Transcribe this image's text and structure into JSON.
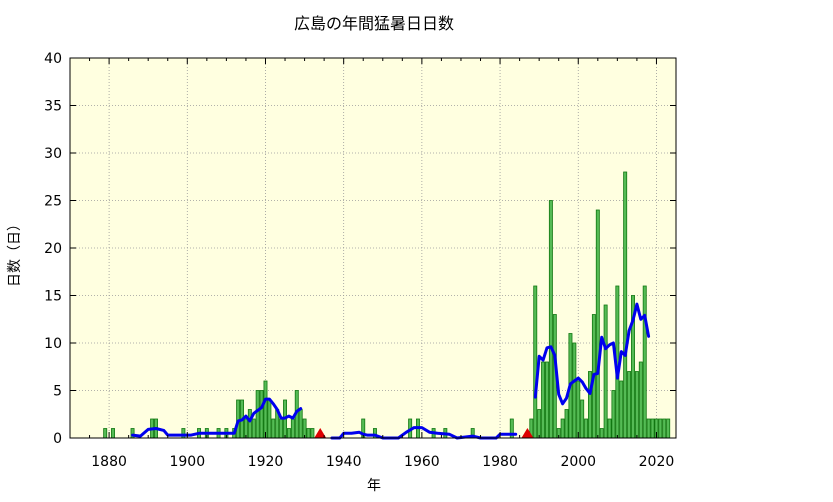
{
  "chart_data": {
    "type": "bar",
    "title": "広島の年間猛暑日日数",
    "xlabel": "年",
    "ylabel": "日数（日）",
    "xlim": [
      1870,
      2025
    ],
    "ylim": [
      0,
      40
    ],
    "xticks": [
      1880,
      1900,
      1920,
      1940,
      1960,
      1980,
      2000,
      2020
    ],
    "yticks": [
      0,
      5,
      10,
      15,
      20,
      25,
      30,
      35,
      40
    ],
    "grid": true,
    "colors": {
      "plot_bg": "#ffffe0",
      "bar_fill": "#55bb55",
      "bar_stroke": "#117711",
      "line": "#0000ee",
      "marker": "#dd0000"
    },
    "series": [
      {
        "kind": "bars",
        "x": [
          1879,
          1881,
          1886,
          1891,
          1892,
          1899,
          1903,
          1905,
          1908,
          1910,
          1912,
          1913,
          1914,
          1915,
          1916,
          1917,
          1918,
          1919,
          1920,
          1921,
          1922,
          1923,
          1924,
          1925,
          1926,
          1927,
          1928,
          1929,
          1930,
          1931,
          1932,
          1945,
          1948,
          1957,
          1959,
          1963,
          1966,
          1973,
          1983,
          1988,
          1989,
          1990,
          1991,
          1992,
          1993,
          1994,
          1995,
          1996,
          1997,
          1998,
          1999,
          2000,
          2001,
          2002,
          2003,
          2004,
          2005,
          2006,
          2007,
          2008,
          2009,
          2010,
          2011,
          2012,
          2013,
          2014,
          2015,
          2016,
          2017,
          2018,
          2019,
          2020,
          2021,
          2022,
          2023
        ],
        "values": [
          1,
          1,
          1,
          2,
          2,
          1,
          1,
          1,
          1,
          1,
          1,
          4,
          4,
          2,
          3,
          2,
          5,
          5,
          6,
          4,
          2,
          3,
          2,
          4,
          1,
          2,
          5,
          3,
          2,
          1,
          1,
          2,
          1,
          2,
          2,
          1,
          1,
          1,
          2,
          2,
          16,
          3,
          8,
          8,
          25,
          13,
          1,
          2,
          3,
          11,
          10,
          6,
          4,
          2,
          7,
          13,
          24,
          1,
          14,
          2,
          5,
          16,
          6,
          28,
          7,
          15,
          7,
          8,
          16,
          2,
          2,
          2,
          2,
          2,
          2
        ]
      },
      {
        "kind": "moving-average-line",
        "segments": [
          [
            [
              1886,
              0.3
            ],
            [
              1888,
              0.2
            ],
            [
              1890,
              0.9
            ],
            [
              1892,
              1.0
            ],
            [
              1894,
              0.8
            ],
            [
              1895,
              0.3
            ],
            [
              1899,
              0.3
            ],
            [
              1901,
              0.3
            ],
            [
              1903,
              0.5
            ],
            [
              1905,
              0.5
            ],
            [
              1908,
              0.5
            ],
            [
              1912,
              0.5
            ],
            [
              1913,
              1.8
            ],
            [
              1914,
              1.9
            ],
            [
              1915,
              2.3
            ],
            [
              1916,
              1.8
            ],
            [
              1917,
              2.6
            ],
            [
              1919,
              3.2
            ],
            [
              1920,
              4.1
            ],
            [
              1921,
              4.1
            ],
            [
              1922,
              3.6
            ],
            [
              1923,
              3.0
            ],
            [
              1924,
              2.1
            ],
            [
              1925,
              2.1
            ],
            [
              1926,
              2.3
            ],
            [
              1927,
              2.1
            ],
            [
              1928,
              2.8
            ],
            [
              1929,
              3.1
            ]
          ],
          [
            [
              1937,
              0.0
            ],
            [
              1939,
              0.0
            ],
            [
              1940,
              0.5
            ],
            [
              1942,
              0.5
            ],
            [
              1944,
              0.6
            ],
            [
              1945,
              0.4
            ],
            [
              1946,
              0.3
            ],
            [
              1948,
              0.3
            ],
            [
              1950,
              0.0
            ],
            [
              1954,
              0.0
            ],
            [
              1956,
              0.6
            ],
            [
              1958,
              1.1
            ],
            [
              1960,
              1.1
            ],
            [
              1962,
              0.6
            ],
            [
              1964,
              0.5
            ],
            [
              1967,
              0.4
            ],
            [
              1969,
              0.0
            ],
            [
              1973,
              0.2
            ],
            [
              1975,
              0.0
            ],
            [
              1979,
              0.0
            ],
            [
              1980,
              0.4
            ],
            [
              1984,
              0.4
            ]
          ],
          [
            [
              1989,
              4.3
            ],
            [
              1990,
              8.6
            ],
            [
              1991,
              8.2
            ],
            [
              1992,
              9.5
            ],
            [
              1993,
              9.6
            ],
            [
              1994,
              8.7
            ],
            [
              1995,
              4.6
            ],
            [
              1996,
              3.6
            ],
            [
              1997,
              4.2
            ],
            [
              1998,
              5.7
            ],
            [
              1999,
              6.0
            ],
            [
              2000,
              6.3
            ],
            [
              2001,
              5.9
            ],
            [
              2002,
              5.2
            ],
            [
              2003,
              4.7
            ],
            [
              2004,
              6.7
            ],
            [
              2005,
              6.8
            ],
            [
              2006,
              10.6
            ],
            [
              2007,
              9.4
            ],
            [
              2008,
              9.8
            ],
            [
              2009,
              10.0
            ],
            [
              2010,
              6.3
            ],
            [
              2011,
              9.1
            ],
            [
              2012,
              8.7
            ],
            [
              2013,
              11.3
            ],
            [
              2014,
              12.4
            ],
            [
              2015,
              14.1
            ],
            [
              2016,
              12.5
            ],
            [
              2017,
              12.9
            ],
            [
              2018,
              10.7
            ]
          ]
        ]
      },
      {
        "kind": "markers",
        "x": [
          1934,
          1987
        ],
        "values": [
          0,
          0
        ]
      }
    ]
  }
}
